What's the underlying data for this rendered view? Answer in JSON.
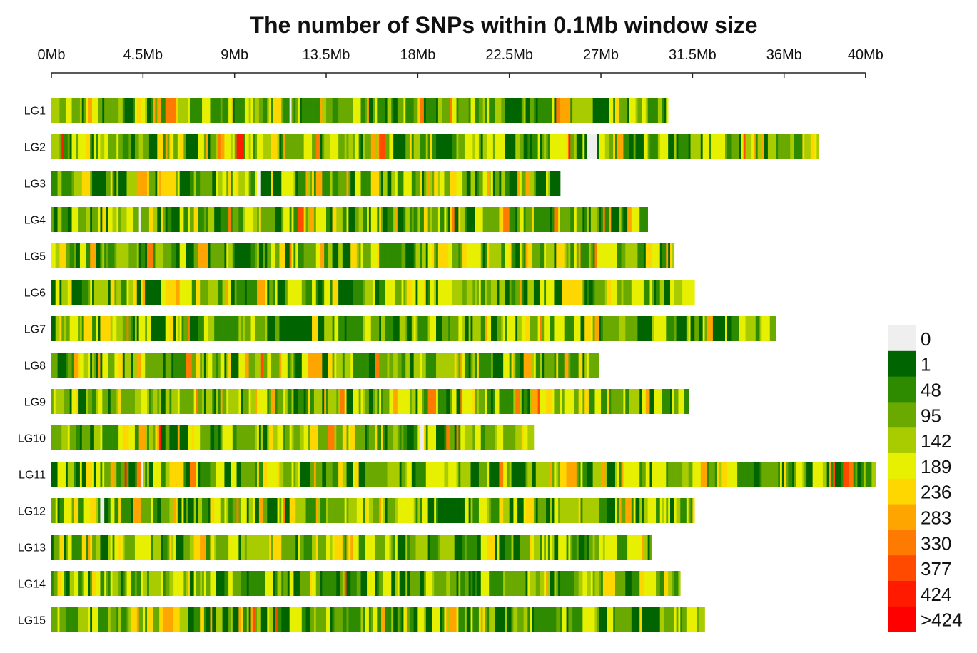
{
  "chart_data": {
    "type": "heatmap",
    "title": "The number of SNPs within 0.1Mb window size",
    "window_size_mb": 0.1,
    "x_axis": {
      "range_mb": [
        0,
        40
      ],
      "ticks": [
        {
          "value": 0,
          "label": "0Mb"
        },
        {
          "value": 4.5,
          "label": "4.5Mb"
        },
        {
          "value": 9,
          "label": "9Mb"
        },
        {
          "value": 13.5,
          "label": "13.5Mb"
        },
        {
          "value": 18,
          "label": "18Mb"
        },
        {
          "value": 22.5,
          "label": "22.5Mb"
        },
        {
          "value": 27,
          "label": "27Mb"
        },
        {
          "value": 31.5,
          "label": "31.5Mb"
        },
        {
          "value": 36,
          "label": "36Mb"
        },
        {
          "value": 40,
          "label": "40Mb"
        }
      ]
    },
    "chromosomes": [
      {
        "name": "LG1",
        "length_mb": 30.3
      },
      {
        "name": "LG2",
        "length_mb": 37.7
      },
      {
        "name": "LG3",
        "length_mb": 25.0
      },
      {
        "name": "LG4",
        "length_mb": 29.3
      },
      {
        "name": "LG5",
        "length_mb": 30.6
      },
      {
        "name": "LG6",
        "length_mb": 31.6
      },
      {
        "name": "LG7",
        "length_mb": 35.6
      },
      {
        "name": "LG8",
        "length_mb": 26.9
      },
      {
        "name": "LG9",
        "length_mb": 31.3
      },
      {
        "name": "LG10",
        "length_mb": 23.7
      },
      {
        "name": "LG11",
        "length_mb": 40.5
      },
      {
        "name": "LG12",
        "length_mb": 31.65
      },
      {
        "name": "LG13",
        "length_mb": 29.5
      },
      {
        "name": "LG14",
        "length_mb": 30.9
      },
      {
        "name": "LG15",
        "length_mb": 32.1
      }
    ],
    "legend": {
      "placement": "right",
      "bins": [
        {
          "label": "0",
          "color": "#efefef"
        },
        {
          "label": "1",
          "color": "#006400"
        },
        {
          "label": "48",
          "color": "#2e8b00"
        },
        {
          "label": "95",
          "color": "#6aaa00"
        },
        {
          "label": "142",
          "color": "#a8cc00"
        },
        {
          "label": "189",
          "color": "#e6f000"
        },
        {
          "label": "236",
          "color": "#ffd700"
        },
        {
          "label": "283",
          "color": "#ffa500"
        },
        {
          "label": "330",
          "color": "#ff7a00"
        },
        {
          "label": "377",
          "color": "#ff4a00"
        },
        {
          "label": "424",
          "color": "#ff1a00"
        },
        {
          "label": ">424",
          "color": "#ff0000"
        }
      ]
    }
  }
}
